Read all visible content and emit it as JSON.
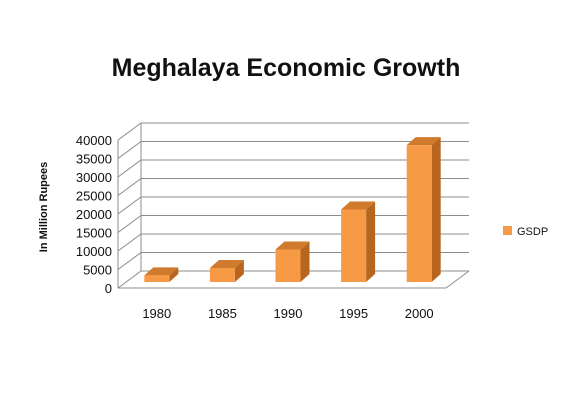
{
  "chart_data": {
    "type": "bar",
    "title": "Meghalaya Economic Growth",
    "xlabel": "",
    "ylabel": "In Million  Rupees",
    "categories": [
      "1980",
      "1985",
      "1990",
      "1995",
      "2000"
    ],
    "series": [
      {
        "name": "GSDP",
        "values": [
          1800,
          3800,
          8800,
          19600,
          37000
        ]
      }
    ],
    "ylim": [
      0,
      40000
    ],
    "yticks": [
      "0",
      "5000",
      "10000",
      "15000",
      "20000",
      "25000",
      "30000",
      "35000",
      "40000"
    ],
    "grid": true,
    "legend_position": "right",
    "bar_style": "3d",
    "colors": {
      "bar_front": "#f79a46",
      "bar_side": "#b8661f",
      "bar_top": "#cf7a2c",
      "grid": "#8c8c8c"
    }
  }
}
